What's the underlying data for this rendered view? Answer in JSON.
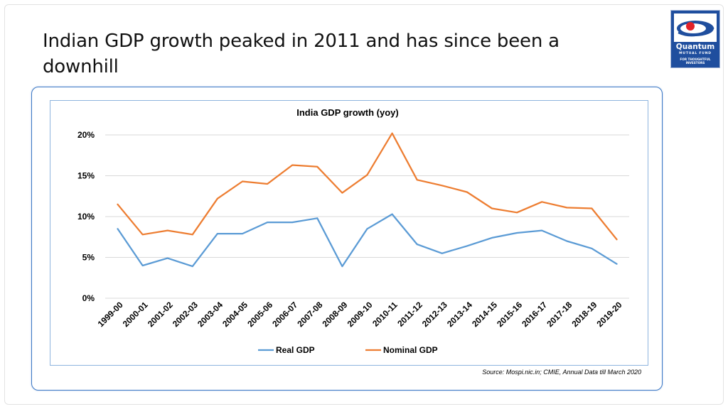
{
  "slide": {
    "title": "Indian GDP growth peaked in 2011 and has since been a downhill",
    "source": "Source: Mospi.nic.in; CMIE, Annual Data till March 2020"
  },
  "logo": {
    "name": "Quantum",
    "subtitle": "MUTUAL FUND",
    "tagline": "FOR THOUGHTFUL INVESTORS",
    "colors": {
      "background": "#1f4e9e",
      "accent": "#e22128"
    }
  },
  "chart_data": {
    "type": "line",
    "title": "India GDP growth (yoy)",
    "categories": [
      "1999-00",
      "2000-01",
      "2001-02",
      "2002-03",
      "2003-04",
      "2004-05",
      "2005-06",
      "2006-07",
      "2007-08",
      "2008-09",
      "2009-10",
      "2010-11",
      "2011-12",
      "2012-13",
      "2013-14",
      "2014-15",
      "2015-16",
      "2016-17",
      "2017-18",
      "2018-19",
      "2019-20"
    ],
    "series": [
      {
        "name": "Real GDP",
        "color": "#5b9bd5",
        "values": [
          8.5,
          4.0,
          4.9,
          3.9,
          7.9,
          7.9,
          9.3,
          9.3,
          9.8,
          3.9,
          8.5,
          10.3,
          6.6,
          5.5,
          6.4,
          7.4,
          8.0,
          8.3,
          7.0,
          6.1,
          4.2
        ]
      },
      {
        "name": "Nominal GDP",
        "color": "#ed7d31",
        "values": [
          11.5,
          7.8,
          8.3,
          7.8,
          12.2,
          14.3,
          14.0,
          16.3,
          16.1,
          12.9,
          15.1,
          20.2,
          14.5,
          13.8,
          13.0,
          11.0,
          10.5,
          11.8,
          11.1,
          11.0,
          7.2
        ]
      }
    ],
    "y_ticks": [
      "0%",
      "5%",
      "10%",
      "15%",
      "20%"
    ],
    "ylim": [
      0,
      20
    ],
    "grid": true,
    "legend_position": "bottom"
  }
}
